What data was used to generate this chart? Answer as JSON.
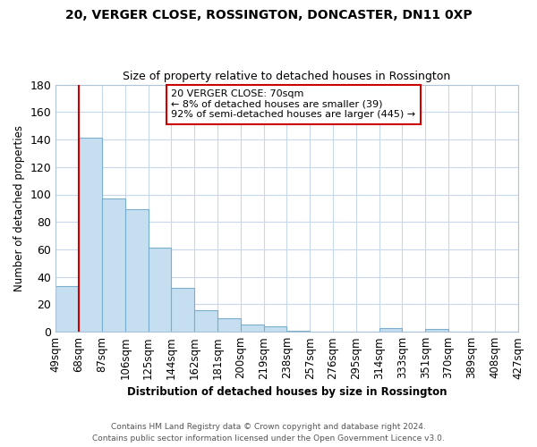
{
  "title1": "20, VERGER CLOSE, ROSSINGTON, DONCASTER, DN11 0XP",
  "title2": "Size of property relative to detached houses in Rossington",
  "xlabel": "Distribution of detached houses by size in Rossington",
  "ylabel": "Number of detached properties",
  "bar_values": [
    33,
    141,
    97,
    89,
    61,
    32,
    16,
    10,
    5,
    4,
    1,
    0,
    0,
    0,
    3,
    0,
    2,
    0,
    0,
    0
  ],
  "bar_labels": [
    "49sqm",
    "68sqm",
    "87sqm",
    "106sqm",
    "125sqm",
    "144sqm",
    "162sqm",
    "181sqm",
    "200sqm",
    "219sqm",
    "238sqm",
    "257sqm",
    "276sqm",
    "295sqm",
    "314sqm",
    "333sqm",
    "351sqm",
    "370sqm",
    "389sqm",
    "408sqm",
    "427sqm"
  ],
  "bar_color": "#c5dff0",
  "bar_edge_color": "#7aadce",
  "ylim": [
    0,
    180
  ],
  "yticks": [
    0,
    20,
    40,
    60,
    80,
    100,
    120,
    140,
    160,
    180
  ],
  "vline_x": 1,
  "vline_color": "#cc0000",
  "annotation_title": "20 VERGER CLOSE: 70sqm",
  "annotation_line1": "← 8% of detached houses are smaller (39)",
  "annotation_line2": "92% of semi-detached houses are larger (445) →",
  "annotation_box_color": "#ffffff",
  "annotation_box_edge": "#cc0000",
  "footer1": "Contains HM Land Registry data © Crown copyright and database right 2024.",
  "footer2": "Contains public sector information licensed under the Open Government Licence v3.0.",
  "background_color": "#ffffff",
  "grid_color": "#c8d8ea"
}
